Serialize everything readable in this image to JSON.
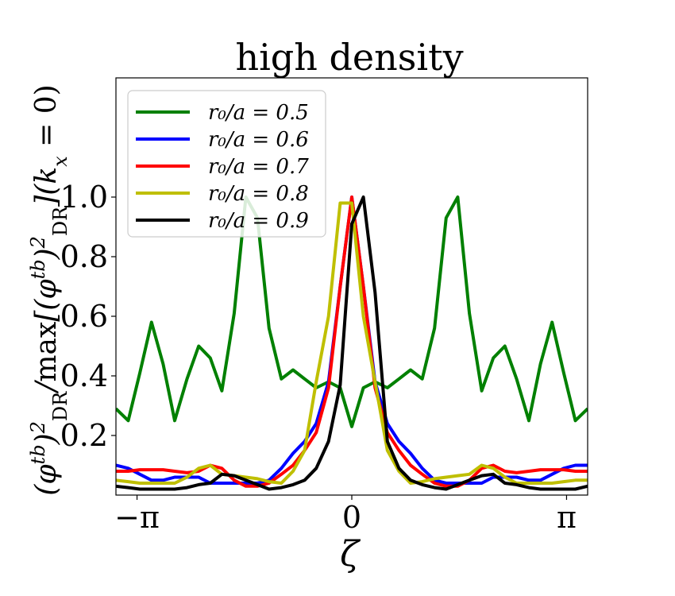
{
  "chart_data": {
    "type": "line",
    "title": "high density",
    "xlabel": "ζ",
    "ylabel": "(φ^tb)²_DR / max[(φ^tb)²_DR](k_x = 0)",
    "ylabel_parts": {
      "phi": "φ",
      "sup": "tb",
      "sub": "DR",
      "sq": "2",
      "max": "max",
      "kx_k": "k",
      "kx_sub": "x",
      "eq0": " = 0)"
    },
    "xlim": [
      -3.45,
      3.45
    ],
    "ylim": [
      0.0,
      1.4
    ],
    "xticks": [
      {
        "value": -3.14159,
        "label": "−π"
      },
      {
        "value": 0,
        "label": "0"
      },
      {
        "value": 3.14159,
        "label": "π"
      }
    ],
    "yticks": [
      {
        "value": 0.2,
        "label": "0.2"
      },
      {
        "value": 0.4,
        "label": "0.4"
      },
      {
        "value": 0.6,
        "label": "0.6"
      },
      {
        "value": 0.8,
        "label": "0.8"
      },
      {
        "value": 1.0,
        "label": "1.0"
      }
    ],
    "grid": false,
    "legend_position": "top-left",
    "x": [
      -3.45,
      -3.27,
      -3.1,
      -2.93,
      -2.76,
      -2.59,
      -2.41,
      -2.24,
      -2.07,
      -1.9,
      -1.72,
      -1.55,
      -1.38,
      -1.21,
      -1.03,
      -0.86,
      -0.69,
      -0.52,
      -0.34,
      -0.17,
      0.0,
      0.17,
      0.34,
      0.52,
      0.69,
      0.86,
      1.03,
      1.21,
      1.38,
      1.55,
      1.72,
      1.9,
      2.07,
      2.24,
      2.41,
      2.59,
      2.76,
      2.93,
      3.1,
      3.27,
      3.45
    ],
    "series": [
      {
        "name": "r₀/a = 0.5",
        "color": "#008000",
        "values": [
          0.29,
          0.25,
          0.41,
          0.58,
          0.44,
          0.25,
          0.39,
          0.5,
          0.46,
          0.35,
          0.61,
          1.0,
          0.93,
          0.56,
          0.39,
          0.42,
          0.39,
          0.36,
          0.38,
          0.36,
          0.23,
          0.36,
          0.38,
          0.36,
          0.39,
          0.42,
          0.39,
          0.56,
          0.93,
          1.0,
          0.61,
          0.35,
          0.46,
          0.5,
          0.39,
          0.25,
          0.44,
          0.58,
          0.41,
          0.25,
          0.29
        ]
      },
      {
        "name": "r₀/a = 0.6",
        "color": "#0000ff",
        "values": [
          0.1,
          0.09,
          0.07,
          0.05,
          0.05,
          0.06,
          0.06,
          0.06,
          0.04,
          0.04,
          0.04,
          0.04,
          0.04,
          0.05,
          0.09,
          0.14,
          0.18,
          0.24,
          0.38,
          0.7,
          1.0,
          0.7,
          0.38,
          0.24,
          0.18,
          0.14,
          0.09,
          0.05,
          0.04,
          0.04,
          0.04,
          0.04,
          0.06,
          0.06,
          0.06,
          0.05,
          0.05,
          0.07,
          0.09,
          0.1,
          0.1
        ]
      },
      {
        "name": "r₀/a = 0.7",
        "color": "#ff0000",
        "values": [
          0.08,
          0.08,
          0.085,
          0.085,
          0.085,
          0.08,
          0.075,
          0.08,
          0.1,
          0.09,
          0.05,
          0.03,
          0.03,
          0.04,
          0.07,
          0.1,
          0.15,
          0.21,
          0.36,
          0.7,
          1.0,
          0.7,
          0.36,
          0.21,
          0.15,
          0.1,
          0.07,
          0.04,
          0.03,
          0.03,
          0.05,
          0.09,
          0.1,
          0.08,
          0.075,
          0.08,
          0.085,
          0.085,
          0.085,
          0.08,
          0.08
        ]
      },
      {
        "name": "r₀/a = 0.8",
        "color": "#bfbf00",
        "values": [
          0.05,
          0.045,
          0.04,
          0.04,
          0.04,
          0.04,
          0.06,
          0.09,
          0.1,
          0.07,
          0.065,
          0.06,
          0.055,
          0.045,
          0.04,
          0.08,
          0.15,
          0.38,
          0.6,
          0.98,
          0.98,
          0.6,
          0.38,
          0.15,
          0.08,
          0.04,
          0.045,
          0.055,
          0.06,
          0.065,
          0.07,
          0.1,
          0.09,
          0.06,
          0.04,
          0.04,
          0.04,
          0.04,
          0.045,
          0.05,
          0.05
        ]
      },
      {
        "name": "r₀/a = 0.9",
        "color": "#000000",
        "values": [
          0.03,
          0.025,
          0.02,
          0.02,
          0.02,
          0.02,
          0.025,
          0.035,
          0.04,
          0.07,
          0.065,
          0.05,
          0.035,
          0.02,
          0.025,
          0.035,
          0.05,
          0.09,
          0.18,
          0.37,
          0.91,
          1.0,
          0.68,
          0.18,
          0.09,
          0.05,
          0.035,
          0.025,
          0.02,
          0.035,
          0.05,
          0.065,
          0.07,
          0.04,
          0.035,
          0.025,
          0.02,
          0.02,
          0.02,
          0.02,
          0.03
        ]
      }
    ]
  }
}
